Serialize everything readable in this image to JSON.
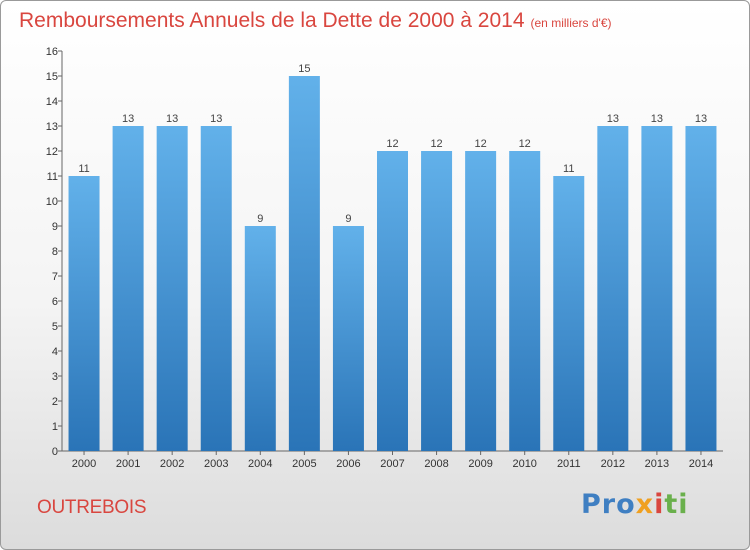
{
  "header": {
    "title": "Remboursements Annuels de la Dette de 2000 à 2014",
    "unit": "(en milliers d'€)"
  },
  "footer": {
    "commune": "OUTREBOIS",
    "logo_parts": [
      "Pro",
      "x",
      "i",
      "ti"
    ]
  },
  "colors": {
    "title": "#d9463f",
    "bar_top": "#62b1ea",
    "bar_bottom": "#2a74b7"
  },
  "chart_data": {
    "type": "bar",
    "title": "Remboursements Annuels de la Dette de 2000 à 2014",
    "categories": [
      "2000",
      "2001",
      "2002",
      "2003",
      "2004",
      "2005",
      "2006",
      "2007",
      "2008",
      "2009",
      "2010",
      "2011",
      "2012",
      "2013",
      "2014"
    ],
    "values": [
      11,
      13,
      13,
      13,
      9,
      15,
      9,
      12,
      12,
      12,
      12,
      11,
      13,
      13,
      13
    ],
    "ylim": [
      0,
      16
    ],
    "yticks": [
      0,
      1,
      2,
      3,
      4,
      5,
      6,
      7,
      8,
      9,
      10,
      11,
      12,
      13,
      14,
      15,
      16
    ],
    "grid": false,
    "xlabel": "",
    "ylabel": ""
  }
}
